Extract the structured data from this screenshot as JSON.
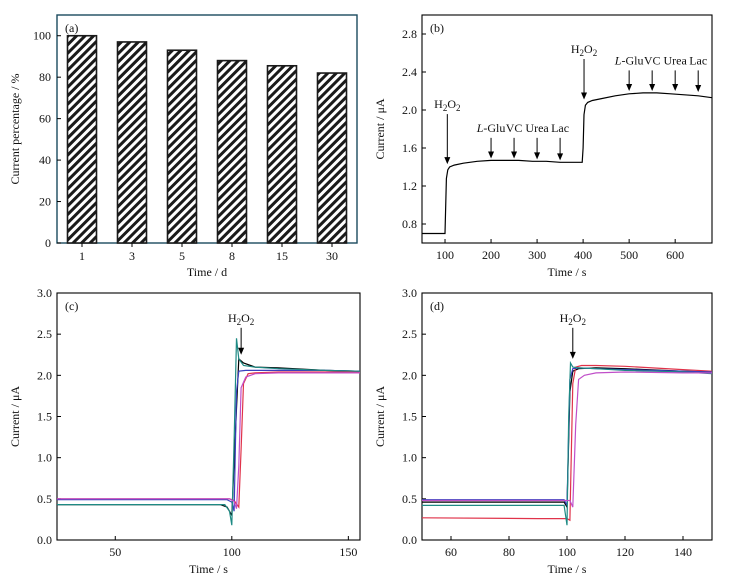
{
  "colors": {
    "bar_fill": "#ffffff",
    "bar_hatch": "#1a1a1a",
    "axis": "#000000",
    "frame_a": "#1b4a5e",
    "trace_black": "#000000",
    "trace_red": "#e0334a",
    "trace_blue": "#3b3fbf",
    "trace_teal": "#1e8a84",
    "trace_magenta": "#c04fc9"
  },
  "chart_data": [
    {
      "panel": "(a)",
      "type": "bar",
      "categories": [
        "1",
        "3",
        "5",
        "8",
        "15",
        "30"
      ],
      "values": [
        100,
        97,
        93,
        88,
        85.5,
        82
      ],
      "xlabel": "Time / d",
      "ylabel": "Current percentage / %",
      "ylim": [
        0,
        110
      ],
      "yticks": [
        0,
        20,
        40,
        60,
        80,
        100
      ],
      "pattern": "diagonal-hatch"
    },
    {
      "panel": "(b)",
      "type": "line",
      "xlabel": "Time / s",
      "ylabel": "Current / μA",
      "xlim": [
        50,
        680
      ],
      "ylim": [
        0.6,
        3.0
      ],
      "xticks": [
        100,
        200,
        300,
        400,
        500,
        600
      ],
      "yticks": [
        0.8,
        1.2,
        1.6,
        2.0,
        2.4,
        2.8
      ],
      "series": [
        {
          "color": "#000000",
          "x": [
            50,
            100,
            103,
            106,
            110,
            120,
            140,
            170,
            200,
            230,
            260,
            290,
            320,
            350,
            380,
            398,
            400,
            402,
            405,
            410,
            420,
            440,
            470,
            500,
            530,
            560,
            590,
            620,
            650,
            680
          ],
          "y": [
            0.7,
            0.7,
            1.28,
            1.37,
            1.4,
            1.42,
            1.44,
            1.46,
            1.47,
            1.47,
            1.47,
            1.46,
            1.46,
            1.45,
            1.45,
            1.45,
            1.6,
            1.95,
            2.05,
            2.08,
            2.1,
            2.12,
            2.15,
            2.17,
            2.18,
            2.18,
            2.17,
            2.16,
            2.15,
            2.13
          ]
        }
      ],
      "annotations": [
        {
          "label": "H2O2",
          "x": 105,
          "y_tip": 1.43,
          "y_text": 2.02
        },
        {
          "label": "L-Glu",
          "x": 200,
          "y_tip": 1.49,
          "y_text": 1.77
        },
        {
          "label": "VC",
          "x": 250,
          "y_tip": 1.49,
          "y_text": 1.77
        },
        {
          "label": "Urea",
          "x": 300,
          "y_tip": 1.48,
          "y_text": 1.77
        },
        {
          "label": "Lac",
          "x": 350,
          "y_tip": 1.47,
          "y_text": 1.77
        },
        {
          "label": "H2O2",
          "x": 402,
          "y_tip": 2.11,
          "y_text": 2.6
        },
        {
          "label": "L-Glu",
          "x": 500,
          "y_tip": 2.2,
          "y_text": 2.48
        },
        {
          "label": "VC",
          "x": 550,
          "y_tip": 2.2,
          "y_text": 2.48
        },
        {
          "label": "Urea",
          "x": 600,
          "y_tip": 2.2,
          "y_text": 2.48
        },
        {
          "label": "Lac",
          "x": 650,
          "y_tip": 2.19,
          "y_text": 2.48
        }
      ]
    },
    {
      "panel": "(c)",
      "type": "line",
      "xlabel": "Time / s",
      "ylabel": "Current / μA",
      "xlim": [
        25,
        155
      ],
      "ylim": [
        0,
        3.0
      ],
      "xticks": [
        50,
        100,
        150
      ],
      "yticks": [
        0.0,
        0.5,
        1.0,
        1.5,
        2.0,
        2.5,
        3.0
      ],
      "annotations": [
        {
          "label": "H2O2",
          "x": 104,
          "y_tip": 2.25,
          "y_text": 2.65
        }
      ],
      "series": [
        {
          "color": "#000000",
          "x": [
            25,
            80,
            95,
            98,
            100,
            102,
            103,
            105,
            110,
            120,
            140,
            155
          ],
          "y": [
            0.43,
            0.43,
            0.43,
            0.4,
            0.3,
            1.6,
            2.2,
            2.15,
            2.1,
            2.09,
            2.06,
            2.05
          ]
        },
        {
          "color": "#e0334a",
          "x": [
            25,
            80,
            99,
            101,
            103,
            104,
            105,
            107,
            110,
            120,
            140,
            155
          ],
          "y": [
            0.5,
            0.5,
            0.5,
            0.48,
            0.4,
            1.1,
            1.9,
            2.02,
            2.03,
            2.04,
            2.04,
            2.04
          ]
        },
        {
          "color": "#3b3fbf",
          "x": [
            25,
            80,
            98,
            100,
            101,
            102,
            103,
            106,
            110,
            120,
            140,
            155
          ],
          "y": [
            0.49,
            0.49,
            0.49,
            0.46,
            0.35,
            1.8,
            2.05,
            2.06,
            2.06,
            2.06,
            2.06,
            2.05
          ]
        },
        {
          "color": "#1e8a84",
          "x": [
            25,
            80,
            97,
            99,
            100,
            101,
            102,
            103,
            105,
            110,
            120,
            140,
            155
          ],
          "y": [
            0.43,
            0.43,
            0.43,
            0.35,
            0.18,
            1.2,
            2.45,
            2.2,
            2.12,
            2.1,
            2.08,
            2.06,
            2.05
          ]
        },
        {
          "color": "#c04fc9",
          "x": [
            25,
            80,
            99,
            101,
            102,
            103,
            104,
            106,
            110,
            120,
            140,
            155
          ],
          "y": [
            0.5,
            0.5,
            0.5,
            0.47,
            0.38,
            0.9,
            1.85,
            1.98,
            2.02,
            2.03,
            2.03,
            2.03
          ]
        }
      ]
    },
    {
      "panel": "(d)",
      "type": "line",
      "xlabel": "Time / s",
      "ylabel": "Current / μA",
      "xlim": [
        50,
        150
      ],
      "ylim": [
        0,
        3.0
      ],
      "xticks": [
        60,
        80,
        100,
        120,
        140
      ],
      "yticks": [
        0.0,
        0.5,
        1.0,
        1.5,
        2.0,
        2.5,
        3.0
      ],
      "annotations": [
        {
          "label": "H2O2",
          "x": 102,
          "y_tip": 2.2,
          "y_text": 2.65
        }
      ],
      "series": [
        {
          "color": "#000000",
          "x": [
            50,
            90,
            99,
            100,
            101,
            102,
            104,
            110,
            120,
            140,
            150
          ],
          "y": [
            0.46,
            0.46,
            0.46,
            0.4,
            1.8,
            2.05,
            2.08,
            2.09,
            2.08,
            2.05,
            2.04
          ]
        },
        {
          "color": "#e0334a",
          "x": [
            50,
            90,
            100,
            101,
            102,
            103,
            105,
            110,
            120,
            140,
            150
          ],
          "y": [
            0.27,
            0.26,
            0.26,
            0.24,
            1.9,
            2.1,
            2.12,
            2.12,
            2.11,
            2.07,
            2.05
          ]
        },
        {
          "color": "#3b3fbf",
          "x": [
            50,
            90,
            99,
            100,
            101,
            102,
            104,
            110,
            120,
            140,
            150
          ],
          "y": [
            0.49,
            0.49,
            0.49,
            0.42,
            1.95,
            2.08,
            2.09,
            2.08,
            2.07,
            2.05,
            2.04
          ]
        },
        {
          "color": "#1e8a84",
          "x": [
            50,
            90,
            99,
            100,
            100.6,
            101.2,
            102,
            104,
            110,
            120,
            140,
            150
          ],
          "y": [
            0.42,
            0.42,
            0.42,
            0.18,
            1.5,
            2.15,
            2.1,
            2.09,
            2.08,
            2.06,
            2.04,
            2.02
          ]
        },
        {
          "color": "#c04fc9",
          "x": [
            50,
            90,
            101,
            102,
            103,
            104,
            106,
            110,
            120,
            140,
            150
          ],
          "y": [
            0.48,
            0.48,
            0.48,
            0.4,
            1.4,
            1.95,
            2.0,
            2.03,
            2.04,
            2.03,
            2.03
          ]
        }
      ]
    }
  ]
}
